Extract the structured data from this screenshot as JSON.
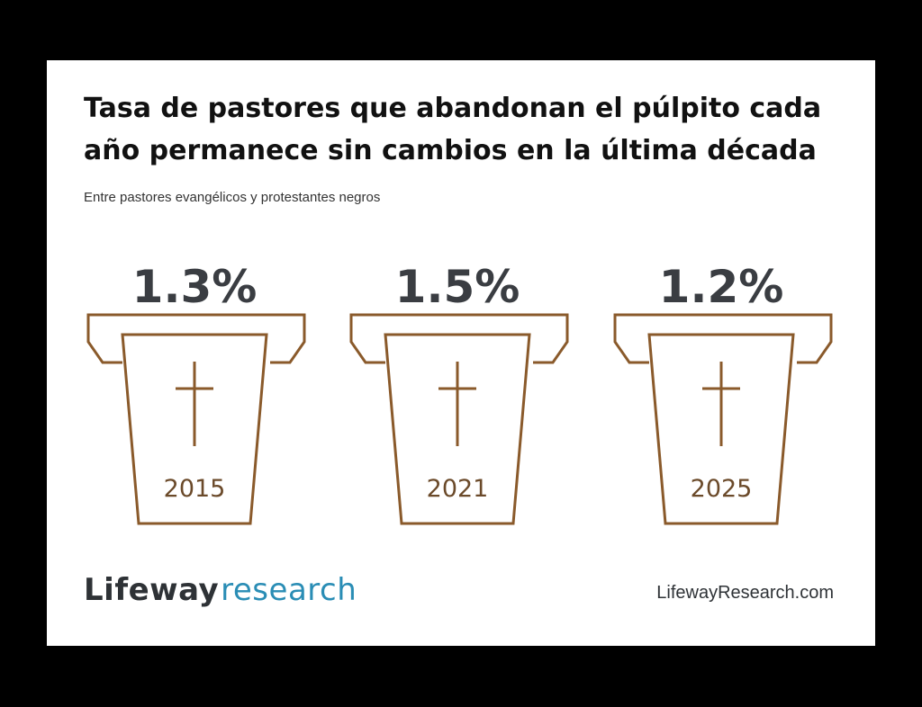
{
  "chart_data": {
    "type": "pictograph",
    "title": "Tasa de pastores que abandonan el púlpito cada año permanece sin cambios en la última década",
    "subtitle": "Entre pastores evangélicos y protestantes negros",
    "categories": [
      "2015",
      "2021",
      "2025"
    ],
    "values": [
      1.3,
      1.5,
      1.2
    ],
    "value_labels": [
      "1.3%",
      "1.5%",
      "1.2%"
    ],
    "unit": "%"
  },
  "footer": {
    "logo_word1": "Lifeway",
    "logo_word2": "research",
    "website": "LifewayResearch.com"
  },
  "colors": {
    "pulpit": "#8a5a2b",
    "value_text": "#3a3d42",
    "year_text": "#6b4a2a",
    "logo_dark": "#2e3236",
    "logo_accent": "#2a8db5"
  },
  "icons": [
    "pulpit-icon",
    "cross-icon"
  ]
}
